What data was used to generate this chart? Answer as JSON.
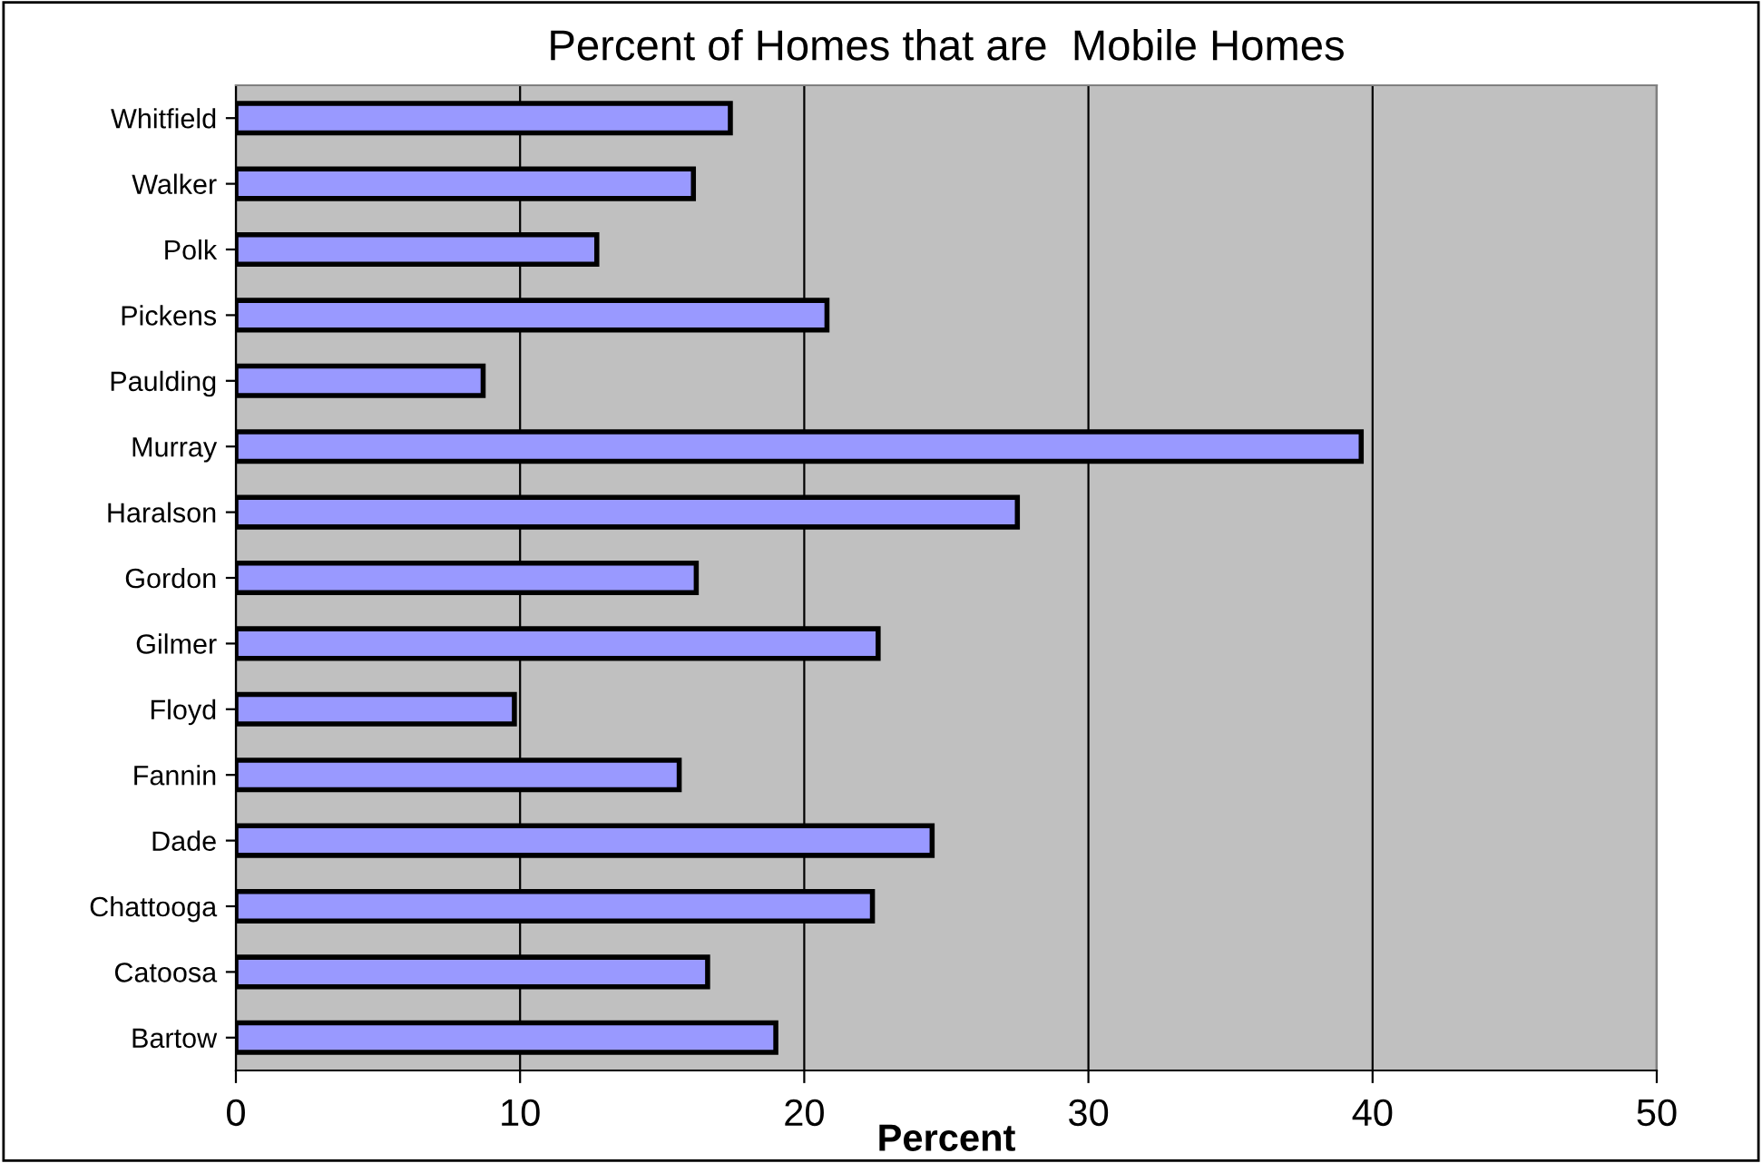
{
  "chart_data": {
    "type": "bar",
    "orientation": "horizontal",
    "title": "Percent of Homes that are  Mobile Homes",
    "xlabel": "Percent",
    "categories": [
      "Whitfield",
      "Walker",
      "Polk",
      "Pickens",
      "Paulding",
      "Murray",
      "Haralson",
      "Gordon",
      "Gilmer",
      "Floyd",
      "Fannin",
      "Dade",
      "Chattooga",
      "Catoosa",
      "Bartow"
    ],
    "values": [
      17.4,
      16.1,
      12.7,
      20.8,
      8.7,
      39.6,
      27.5,
      16.2,
      22.6,
      9.8,
      15.6,
      24.5,
      22.4,
      16.6,
      19.0
    ],
    "color": "#9999ff",
    "xlim": [
      0,
      50
    ],
    "xticks": [
      0,
      10,
      20,
      30,
      40,
      50
    ],
    "grid": "x"
  }
}
